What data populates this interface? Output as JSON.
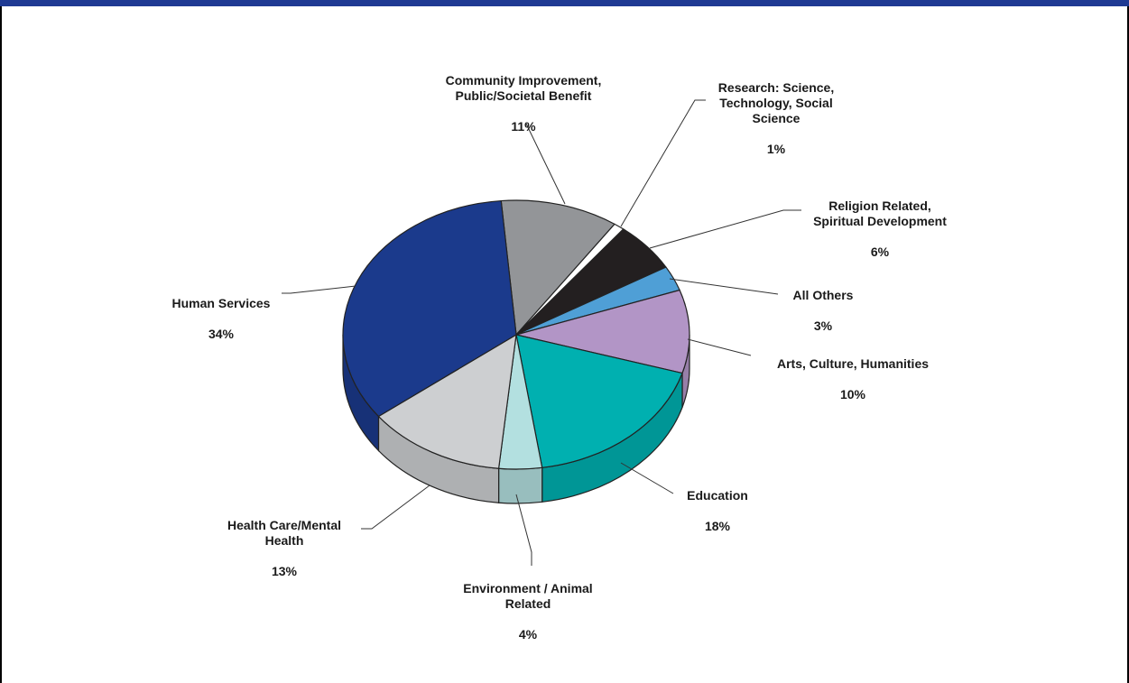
{
  "colors": {
    "header_bar": "#1f3a93",
    "frame": "#000000"
  },
  "chart_data": {
    "type": "pie",
    "style": "3d",
    "slices": [
      {
        "label": "Community Improvement,\nPublic/Societal Benefit",
        "value": 11,
        "pct": "11%",
        "color": "#939598"
      },
      {
        "label": "Research:  Science,\nTechnology, Social\nScience",
        "value": 1,
        "pct": "1%",
        "color": "#ffffff"
      },
      {
        "label": "Religion Related,\nSpiritual Development",
        "value": 6,
        "pct": "6%",
        "color": "#231f20"
      },
      {
        "label": "All Others",
        "value": 3,
        "pct": "3%",
        "color": "#4f9fd6"
      },
      {
        "label": "Arts, Culture, Humanities",
        "value": 10,
        "pct": "10%",
        "color": "#b295c6"
      },
      {
        "label": "Education",
        "value": 18,
        "pct": "18%",
        "color": "#00b0b0"
      },
      {
        "label": "Environment / Animal\nRelated",
        "value": 4,
        "pct": "4%",
        "color": "#b3e0e0"
      },
      {
        "label": "Health Care/Mental\nHealth",
        "value": 13,
        "pct": "13%",
        "color": "#cdcfd1"
      },
      {
        "label": "Human Services",
        "value": 34,
        "pct": "34%",
        "color": "#1b3a8c"
      }
    ]
  }
}
